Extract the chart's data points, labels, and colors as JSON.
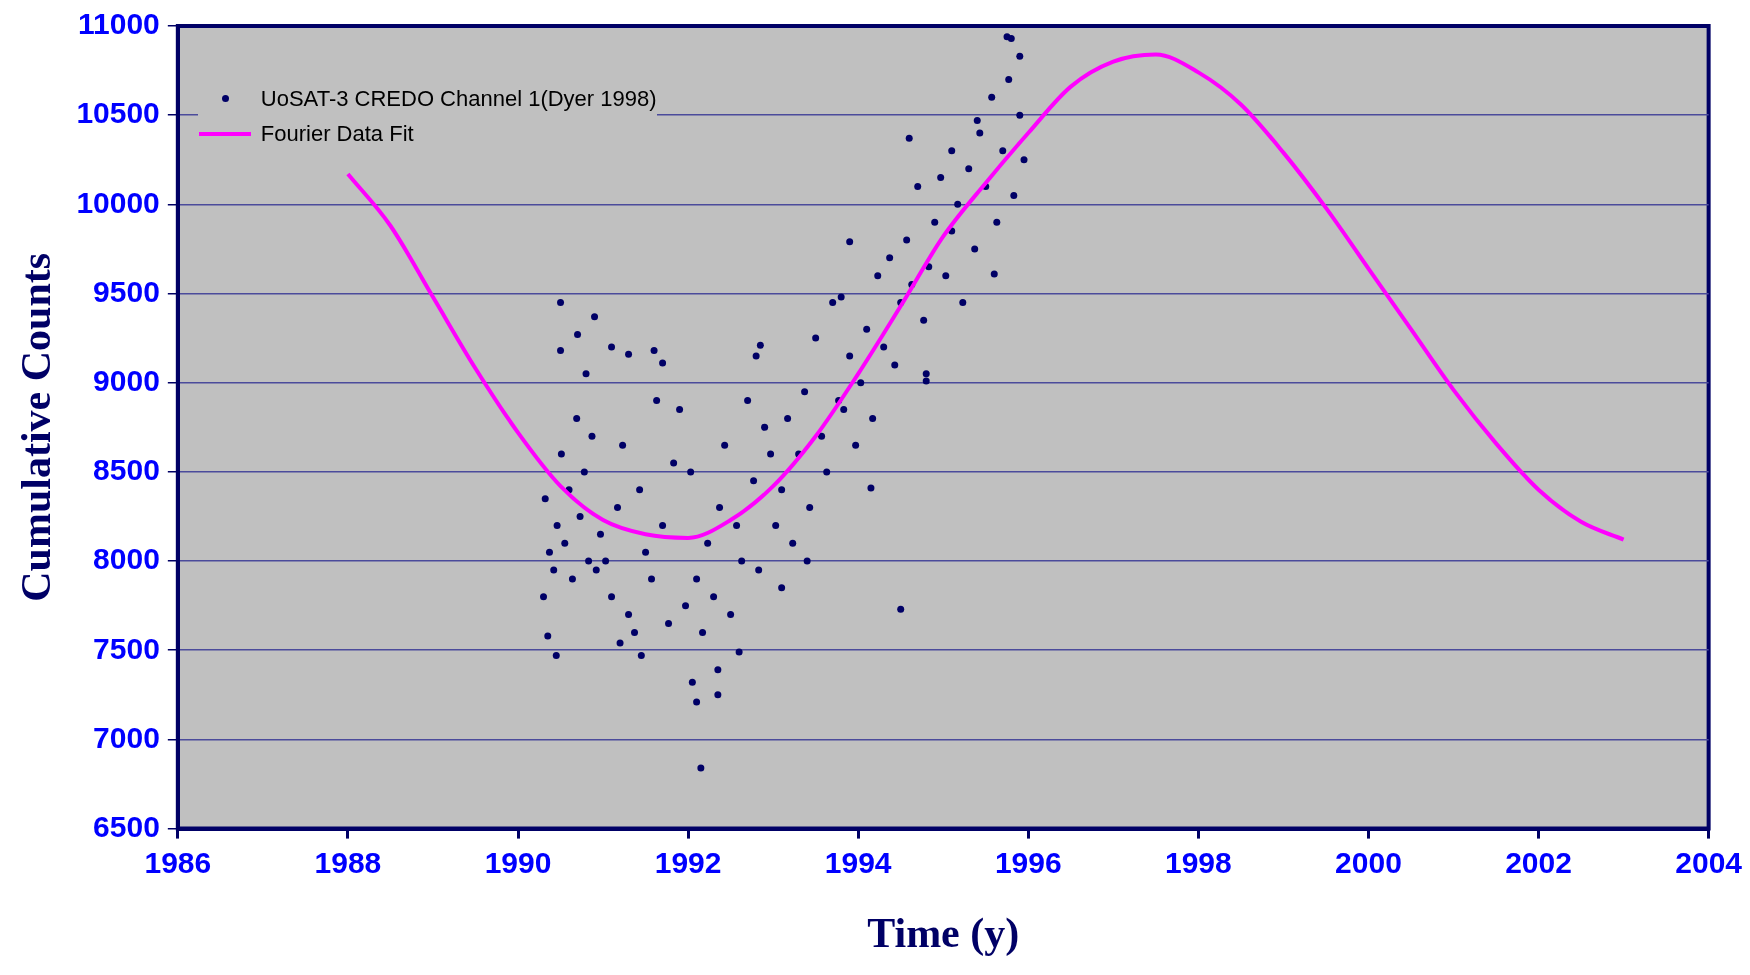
{
  "chart_data": {
    "type": "scatter",
    "xlabel": "Time (y)",
    "ylabel": "Cumulative Counts",
    "xlim": [
      1986,
      2004
    ],
    "xticks": [
      1986,
      1988,
      1990,
      1992,
      1994,
      1996,
      1998,
      2000,
      2002,
      2004
    ],
    "ylim": [
      6500,
      11000
    ],
    "yticks": [
      6500,
      7000,
      7500,
      8000,
      8500,
      9000,
      9500,
      10000,
      10500,
      11000
    ],
    "grid": "y",
    "legend": "top left",
    "marker": "circle",
    "series": [
      {
        "name": "UoSAT-3 CREDO Channel 1(Dyer 1998)",
        "color": "#000066",
        "x": [
          1990.3,
          1990.35,
          1990.45,
          1990.5,
          1990.5,
          1990.7,
          1990.9,
          1990.8,
          1991.1,
          1991.3,
          1991.6,
          1991.7,
          1991.2,
          1991.45,
          1992.15,
          1992.1,
          1992.35,
          1992.35,
          1992.05,
          1992.6,
          1992.85,
          1992.8,
          1994.5,
          1994.8,
          1994.8,
          1994.6,
          1995.75,
          1995.8,
          1995.9,
          1995.4,
          1995.1,
          1995.6,
          1993.8,
          1993.9,
          1994.15,
          1993.4,
          1993.1,
          1990.32,
          1990.37,
          1990.42,
          1990.46,
          1990.51,
          1990.55,
          1990.6,
          1990.64,
          1990.69,
          1990.73,
          1990.78,
          1990.83,
          1990.87,
          1990.92,
          1990.97,
          1991.03,
          1991.1,
          1991.17,
          1991.23,
          1991.3,
          1991.37,
          1991.43,
          1991.5,
          1991.57,
          1991.63,
          1991.7,
          1991.77,
          1991.83,
          1991.9,
          1991.97,
          1992.03,
          1992.1,
          1992.17,
          1992.23,
          1992.3,
          1992.37,
          1992.43,
          1992.5,
          1992.57,
          1992.63,
          1992.7,
          1992.77,
          1992.83,
          1992.9,
          1992.97,
          1993.03,
          1993.1,
          1993.17,
          1993.23,
          1993.3,
          1993.37,
          1993.43,
          1993.5,
          1993.57,
          1993.63,
          1993.7,
          1993.77,
          1993.83,
          1993.9,
          1993.97,
          1994.03,
          1994.1,
          1994.17,
          1994.23,
          1994.3,
          1994.37,
          1994.43,
          1994.5,
          1994.57,
          1994.63,
          1994.7,
          1994.77,
          1994.83,
          1994.9,
          1994.97,
          1995.03,
          1995.1,
          1995.17,
          1995.23,
          1995.3,
          1995.37,
          1995.43,
          1995.5,
          1995.57,
          1995.63,
          1995.7,
          1995.77,
          1995.83,
          1995.9,
          1995.95
        ],
        "values": [
          7800,
          7580,
          7470,
          9450,
          9180,
          9270,
          9370,
          9050,
          9200,
          9160,
          9180,
          9110,
          7540,
          7470,
          6840,
          7210,
          7250,
          7390,
          7320,
          7490,
          9210,
          9150,
          7730,
          9050,
          9010,
          10370,
          10940,
          10930,
          10830,
          10470,
          10300,
          9610,
          9480,
          9790,
          8410,
          8000,
          7850,
          8350,
          8050,
          7950,
          8200,
          8600,
          8100,
          8400,
          7900,
          8800,
          8250,
          8500,
          8000,
          8700,
          7950,
          8150,
          8000,
          7800,
          8300,
          8650,
          7700,
          7600,
          8400,
          8050,
          7900,
          8900,
          8200,
          7650,
          8550,
          8850,
          7750,
          8500,
          7900,
          7600,
          8100,
          7800,
          8300,
          8650,
          7700,
          8200,
          8000,
          8900,
          8450,
          7950,
          8750,
          8600,
          8200,
          8400,
          8800,
          8100,
          8600,
          8950,
          8300,
          9250,
          8700,
          8500,
          9450,
          8900,
          8850,
          9150,
          8650,
          9000,
          9300,
          8800,
          9600,
          9200,
          9700,
          9100,
          9450,
          9800,
          9550,
          10100,
          9350,
          9650,
          9900,
          10150,
          9600,
          9850,
          10000,
          9450,
          10200,
          9750,
          10400,
          10100,
          10600,
          9900,
          10300,
          10700,
          10050,
          10500,
          10250
        ]
      },
      {
        "name": "Fourier Data Fit",
        "type": "line",
        "color": "#ff00ff",
        "marker": "none",
        "line_style": "solid",
        "x": [
          1988,
          1988.5,
          1989,
          1989.5,
          1990,
          1990.5,
          1991,
          1991.5,
          1992,
          1992.5,
          1993,
          1993.5,
          1994,
          1994.5,
          1995,
          1995.5,
          1996,
          1996.5,
          1997,
          1997.5,
          1998,
          1998.5,
          1999,
          1999.5,
          2000,
          2000.5,
          2001,
          2001.5,
          2002,
          2002.5,
          2003
        ],
        "values": [
          10170,
          9880,
          9480,
          9080,
          8720,
          8420,
          8230,
          8150,
          8130,
          8230,
          8420,
          8700,
          9050,
          9430,
          9820,
          10120,
          10400,
          10660,
          10800,
          10840,
          10740,
          10560,
          10290,
          9980,
          9640,
          9300,
          8960,
          8660,
          8400,
          8220,
          8120
        ]
      }
    ]
  }
}
